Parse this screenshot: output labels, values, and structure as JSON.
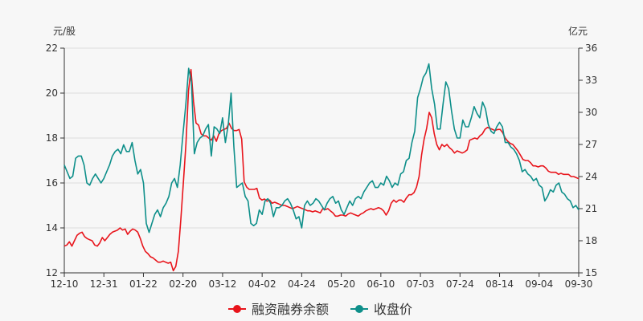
{
  "chart_data": {
    "type": "line",
    "left_axis_unit": "元/股",
    "right_axis_unit": "亿元",
    "x_tick_labels": [
      "12-10",
      "12-31",
      "01-22",
      "02-20",
      "03-12",
      "04-02",
      "04-24",
      "05-20",
      "06-10",
      "07-03",
      "07-24",
      "08-14",
      "09-04",
      "09-30"
    ],
    "y_left": {
      "min": 12,
      "max": 22,
      "ticks": [
        12,
        14,
        16,
        18,
        20,
        22
      ]
    },
    "y_right": {
      "min": 15,
      "max": 36,
      "ticks": [
        15,
        18,
        21,
        24,
        27,
        30,
        33,
        36
      ]
    },
    "grid": "horizontal",
    "legend_position": "bottom-center",
    "series": [
      {
        "name": "融资融券余额",
        "axis": "right",
        "color": "#e8141b",
        "values": [
          17.5,
          17.6,
          17.9,
          17.5,
          18.0,
          18.5,
          18.7,
          18.8,
          18.4,
          18.2,
          18.1,
          18.0,
          17.6,
          17.5,
          17.8,
          18.3,
          18.0,
          18.3,
          18.6,
          18.8,
          18.9,
          19.0,
          19.2,
          19.0,
          19.1,
          18.6,
          18.9,
          19.1,
          19.0,
          18.8,
          18.2,
          17.5,
          17.0,
          16.8,
          16.5,
          16.4,
          16.2,
          16.0,
          16.0,
          16.1,
          16.0,
          15.9,
          16.0,
          15.2,
          15.6,
          17.0,
          20.0,
          23.5,
          27.0,
          32.0,
          34.0,
          31.0,
          29.0,
          28.8,
          28.0,
          27.8,
          27.8,
          27.6,
          27.4,
          27.8,
          27.3,
          28.0,
          28.3,
          28.4,
          28.5,
          29.0,
          28.5,
          28.3,
          28.3,
          28.4,
          27.5,
          23.5,
          23.0,
          22.8,
          22.8,
          22.8,
          22.9,
          22.0,
          21.8,
          21.9,
          21.7,
          21.8,
          21.5,
          21.6,
          21.5,
          21.4,
          21.3,
          21.3,
          21.2,
          21.1,
          21.0,
          21.1,
          21.2,
          21.1,
          21.0,
          20.9,
          20.8,
          20.8,
          20.7,
          20.8,
          20.7,
          20.6,
          21.0,
          20.9,
          21.0,
          20.8,
          20.6,
          20.3,
          20.3,
          20.4,
          20.4,
          20.3,
          20.5,
          20.6,
          20.5,
          20.4,
          20.3,
          20.5,
          20.6,
          20.8,
          20.9,
          21.0,
          20.9,
          21.0,
          21.1,
          21.0,
          20.8,
          20.4,
          20.8,
          21.5,
          21.8,
          21.6,
          21.8,
          21.8,
          21.6,
          22.0,
          22.3,
          22.3,
          22.5,
          23.0,
          24.0,
          26.0,
          27.5,
          28.5,
          30.0,
          29.5,
          28.0,
          27.0,
          26.5,
          27.0,
          26.8,
          27.0,
          26.7,
          26.5,
          26.2,
          26.4,
          26.3,
          26.2,
          26.3,
          26.5,
          27.4,
          27.5,
          27.6,
          27.5,
          27.8,
          28.0,
          28.4,
          28.6,
          28.5,
          28.4,
          28.3,
          28.4,
          28.4,
          28.1,
          27.6,
          27.3,
          27.1,
          27.0,
          26.7,
          26.4,
          26.0,
          25.6,
          25.5,
          25.5,
          25.3,
          25.0,
          25.0,
          24.9,
          25.0,
          25.0,
          24.8,
          24.5,
          24.4,
          24.4,
          24.4,
          24.2,
          24.3,
          24.2,
          24.2,
          24.2,
          24.0,
          24.0,
          23.9,
          23.8
        ]
      },
      {
        "name": "收盘价",
        "axis": "left",
        "color": "#0e8f8a",
        "values": [
          16.8,
          16.5,
          16.2,
          16.3,
          17.1,
          17.2,
          17.2,
          16.8,
          16.0,
          15.9,
          16.2,
          16.4,
          16.2,
          16.0,
          16.2,
          16.5,
          16.8,
          17.2,
          17.4,
          17.5,
          17.3,
          17.7,
          17.4,
          17.4,
          17.8,
          17.0,
          16.4,
          16.6,
          16.0,
          14.2,
          13.8,
          14.2,
          14.6,
          14.8,
          14.5,
          14.9,
          15.1,
          15.4,
          16.0,
          16.2,
          15.8,
          16.8,
          18.2,
          19.5,
          21.1,
          20.5,
          17.3,
          17.8,
          18.0,
          18.1,
          18.4,
          18.6,
          17.2,
          18.5,
          18.4,
          18.2,
          18.9,
          17.8,
          18.6,
          20.0,
          17.6,
          15.8,
          15.9,
          16.0,
          15.4,
          15.2,
          14.2,
          14.1,
          14.2,
          14.8,
          14.6,
          15.2,
          15.3,
          15.1,
          14.5,
          14.9,
          14.9,
          15.0,
          15.2,
          15.3,
          15.1,
          14.8,
          14.4,
          14.5,
          14.0,
          15.0,
          15.2,
          15.0,
          15.1,
          15.3,
          15.2,
          15.0,
          14.8,
          15.1,
          15.3,
          15.4,
          15.1,
          15.2,
          14.8,
          14.6,
          14.9,
          15.2,
          15.0,
          15.3,
          15.4,
          15.3,
          15.6,
          15.8,
          16.0,
          16.1,
          15.8,
          15.8,
          16.0,
          15.9,
          16.3,
          16.1,
          15.8,
          16.0,
          15.9,
          16.4,
          16.5,
          17.0,
          17.1,
          17.8,
          18.3,
          19.8,
          20.2,
          20.7,
          20.9,
          21.3,
          20.2,
          19.5,
          18.4,
          18.4,
          19.5,
          20.5,
          20.2,
          19.2,
          18.4,
          18.0,
          18.0,
          18.8,
          18.5,
          18.5,
          18.9,
          19.4,
          19.1,
          18.9,
          19.6,
          19.3,
          18.6,
          18.3,
          18.2,
          18.5,
          18.7,
          18.5,
          17.8,
          17.8,
          17.6,
          17.5,
          17.3,
          17.0,
          16.5,
          16.6,
          16.4,
          16.3,
          16.1,
          16.2,
          15.9,
          15.8,
          15.2,
          15.4,
          15.7,
          15.6,
          15.9,
          16.0,
          15.6,
          15.5,
          15.3,
          15.2,
          14.9,
          15.0,
          14.8
        ]
      }
    ]
  }
}
